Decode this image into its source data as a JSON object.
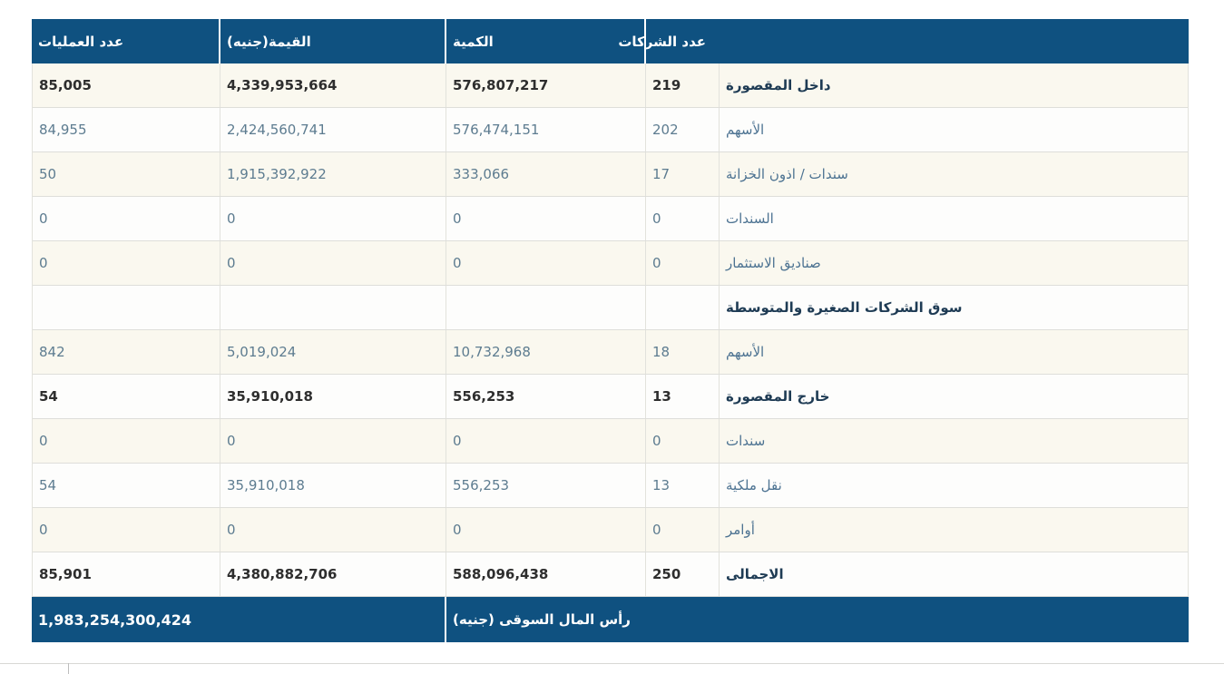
{
  "table": {
    "headers": {
      "operations": "عدد العمليات",
      "value": "القيمة(جنيه)",
      "quantity": "الكمية",
      "companies": "عدد الشركات",
      "label": ""
    },
    "rows": [
      {
        "kind": "section",
        "label": "داخل المقصورة",
        "companies": "219",
        "quantity": "576,807,217",
        "value": "4,339,953,664",
        "operations": "85,005"
      },
      {
        "kind": "sub",
        "label": "الأسهم",
        "companies": "202",
        "quantity": "576,474,151",
        "value": "2,424,560,741",
        "operations": "84,955"
      },
      {
        "kind": "sub",
        "label": "سندات / اذون الخزانة",
        "companies": "17",
        "quantity": "333,066",
        "value": "1,915,392,922",
        "operations": "50"
      },
      {
        "kind": "sub",
        "label": "السندات",
        "companies": "0",
        "quantity": "0",
        "value": "0",
        "operations": "0"
      },
      {
        "kind": "sub",
        "label": "صناديق الاستثمار",
        "companies": "0",
        "quantity": "0",
        "value": "0",
        "operations": "0"
      },
      {
        "kind": "section",
        "label": "سوق الشركات الصغيرة والمتوسطة",
        "companies": "",
        "quantity": "",
        "value": "",
        "operations": ""
      },
      {
        "kind": "sub",
        "label": "الأسهم",
        "companies": "18",
        "quantity": "10,732,968",
        "value": "5,019,024",
        "operations": "842"
      },
      {
        "kind": "section",
        "label": "خارج المقصورة",
        "companies": "13",
        "quantity": "556,253",
        "value": "35,910,018",
        "operations": "54"
      },
      {
        "kind": "sub",
        "label": "سندات",
        "companies": "0",
        "quantity": "0",
        "value": "0",
        "operations": "0"
      },
      {
        "kind": "sub",
        "label": "نقل ملكية",
        "companies": "13",
        "quantity": "556,253",
        "value": "35,910,018",
        "operations": "54"
      },
      {
        "kind": "sub",
        "label": "أوامر",
        "companies": "0",
        "quantity": "0",
        "value": "0",
        "operations": "0"
      },
      {
        "kind": "section",
        "label": "الاجمالى",
        "companies": "250",
        "quantity": "588,096,438",
        "value": "4,380,882,706",
        "operations": "85,901"
      }
    ],
    "footer": {
      "value": "1,983,254,300,424",
      "label": "رأس المال السوقى (جنيه)"
    }
  },
  "colors": {
    "header_bg": "#0f5180",
    "header_text": "#ffffff",
    "row_bg": "#fdfdfc",
    "row_alt_bg": "#faf8ef",
    "section_label_text": "#1e3b54",
    "section_number_text": "#2e2e2e",
    "sub_label_text": "#4d7392",
    "sub_number_text": "#5d7c90",
    "border": "#e2e2dc",
    "footer_bg": "#0f5180",
    "footer_text": "#ffffff"
  }
}
